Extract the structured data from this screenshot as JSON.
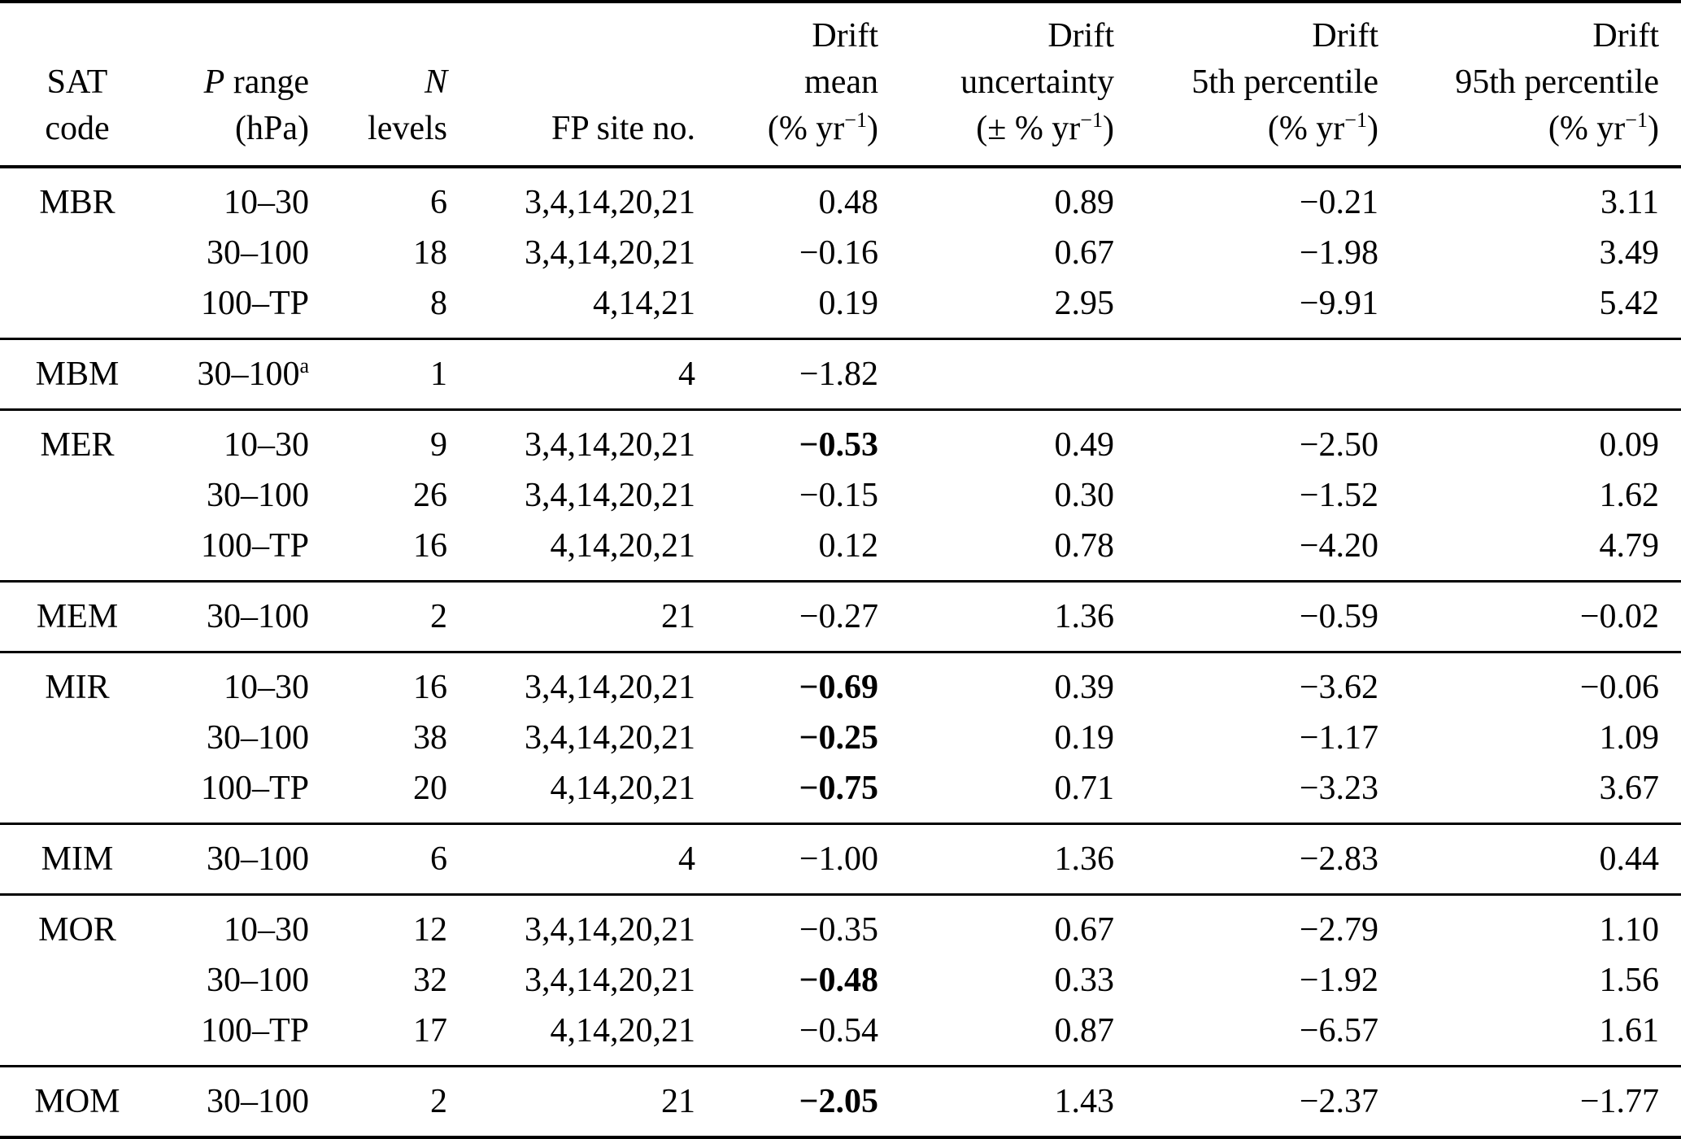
{
  "table": {
    "header": {
      "col1": {
        "line2": "SAT",
        "line3": "code"
      },
      "col2": {
        "symbol": "P",
        "rest": " range",
        "unit": "(hPa)"
      },
      "col3": {
        "symbol": "N",
        "line3": "levels"
      },
      "col4": {
        "line3": "FP site no."
      },
      "col5": {
        "line1": "Drift",
        "line2": "mean",
        "unit_open": "(% yr",
        "unit_sup": "−1",
        "unit_close": ")"
      },
      "col6": {
        "line1": "Drift",
        "line2": "uncertainty",
        "unit_open": "(± % yr",
        "unit_sup": "−1",
        "unit_close": ")"
      },
      "col7": {
        "line1": "Drift",
        "line2": "5th percentile",
        "unit_open": "(% yr",
        "unit_sup": "−1",
        "unit_close": ")"
      },
      "col8": {
        "line1": "Drift",
        "line2": "95th percentile",
        "unit_open": "(% yr",
        "unit_sup": "−1",
        "unit_close": ")"
      }
    },
    "groups": [
      {
        "rows": [
          {
            "sat": "MBR",
            "p_range": "10–30",
            "n_levels": "6",
            "fp_sites": "3,4,14,20,21",
            "mean": "0.48",
            "mean_bold": false,
            "uncertainty": "0.89",
            "p5": "−0.21",
            "p95": "3.11"
          },
          {
            "sat": "",
            "p_range": "30–100",
            "n_levels": "18",
            "fp_sites": "3,4,14,20,21",
            "mean": "−0.16",
            "mean_bold": false,
            "uncertainty": "0.67",
            "p5": "−1.98",
            "p95": "3.49"
          },
          {
            "sat": "",
            "p_range": "100–TP",
            "n_levels": "8",
            "fp_sites": "4,14,21",
            "mean": "0.19",
            "mean_bold": false,
            "uncertainty": "2.95",
            "p5": "−9.91",
            "p95": "5.42"
          }
        ]
      },
      {
        "rows": [
          {
            "sat": "MBM",
            "p_range": "30–100",
            "p_range_sup": "a",
            "n_levels": "1",
            "fp_sites": "4",
            "mean": "−1.82",
            "mean_bold": false,
            "uncertainty": "",
            "p5": "",
            "p95": ""
          }
        ]
      },
      {
        "rows": [
          {
            "sat": "MER",
            "p_range": "10–30",
            "n_levels": "9",
            "fp_sites": "3,4,14,20,21",
            "mean": "−0.53",
            "mean_bold": true,
            "uncertainty": "0.49",
            "p5": "−2.50",
            "p95": "0.09"
          },
          {
            "sat": "",
            "p_range": "30–100",
            "n_levels": "26",
            "fp_sites": "3,4,14,20,21",
            "mean": "−0.15",
            "mean_bold": false,
            "uncertainty": "0.30",
            "p5": "−1.52",
            "p95": "1.62"
          },
          {
            "sat": "",
            "p_range": "100–TP",
            "n_levels": "16",
            "fp_sites": "4,14,20,21",
            "mean": "0.12",
            "mean_bold": false,
            "uncertainty": "0.78",
            "p5": "−4.20",
            "p95": "4.79"
          }
        ]
      },
      {
        "rows": [
          {
            "sat": "MEM",
            "p_range": "30–100",
            "n_levels": "2",
            "fp_sites": "21",
            "mean": "−0.27",
            "mean_bold": false,
            "uncertainty": "1.36",
            "p5": "−0.59",
            "p95": "−0.02"
          }
        ]
      },
      {
        "rows": [
          {
            "sat": "MIR",
            "p_range": "10–30",
            "n_levels": "16",
            "fp_sites": "3,4,14,20,21",
            "mean": "−0.69",
            "mean_bold": true,
            "uncertainty": "0.39",
            "p5": "−3.62",
            "p95": "−0.06"
          },
          {
            "sat": "",
            "p_range": "30–100",
            "n_levels": "38",
            "fp_sites": "3,4,14,20,21",
            "mean": "−0.25",
            "mean_bold": true,
            "uncertainty": "0.19",
            "p5": "−1.17",
            "p95": "1.09"
          },
          {
            "sat": "",
            "p_range": "100–TP",
            "n_levels": "20",
            "fp_sites": "4,14,20,21",
            "mean": "−0.75",
            "mean_bold": true,
            "uncertainty": "0.71",
            "p5": "−3.23",
            "p95": "3.67"
          }
        ]
      },
      {
        "rows": [
          {
            "sat": "MIM",
            "p_range": "30–100",
            "n_levels": "6",
            "fp_sites": "4",
            "mean": "−1.00",
            "mean_bold": false,
            "uncertainty": "1.36",
            "p5": "−2.83",
            "p95": "0.44"
          }
        ]
      },
      {
        "rows": [
          {
            "sat": "MOR",
            "p_range": "10–30",
            "n_levels": "12",
            "fp_sites": "3,4,14,20,21",
            "mean": "−0.35",
            "mean_bold": false,
            "uncertainty": "0.67",
            "p5": "−2.79",
            "p95": "1.10"
          },
          {
            "sat": "",
            "p_range": "30–100",
            "n_levels": "32",
            "fp_sites": "3,4,14,20,21",
            "mean": "−0.48",
            "mean_bold": true,
            "uncertainty": "0.33",
            "p5": "−1.92",
            "p95": "1.56"
          },
          {
            "sat": "",
            "p_range": "100–TP",
            "n_levels": "17",
            "fp_sites": "4,14,20,21",
            "mean": "−0.54",
            "mean_bold": false,
            "uncertainty": "0.87",
            "p5": "−6.57",
            "p95": "1.61"
          }
        ]
      },
      {
        "rows": [
          {
            "sat": "MOM",
            "p_range": "30–100",
            "n_levels": "2",
            "fp_sites": "21",
            "mean": "−2.05",
            "mean_bold": true,
            "uncertainty": "1.43",
            "p5": "−2.37",
            "p95": "−1.77"
          }
        ]
      }
    ]
  }
}
